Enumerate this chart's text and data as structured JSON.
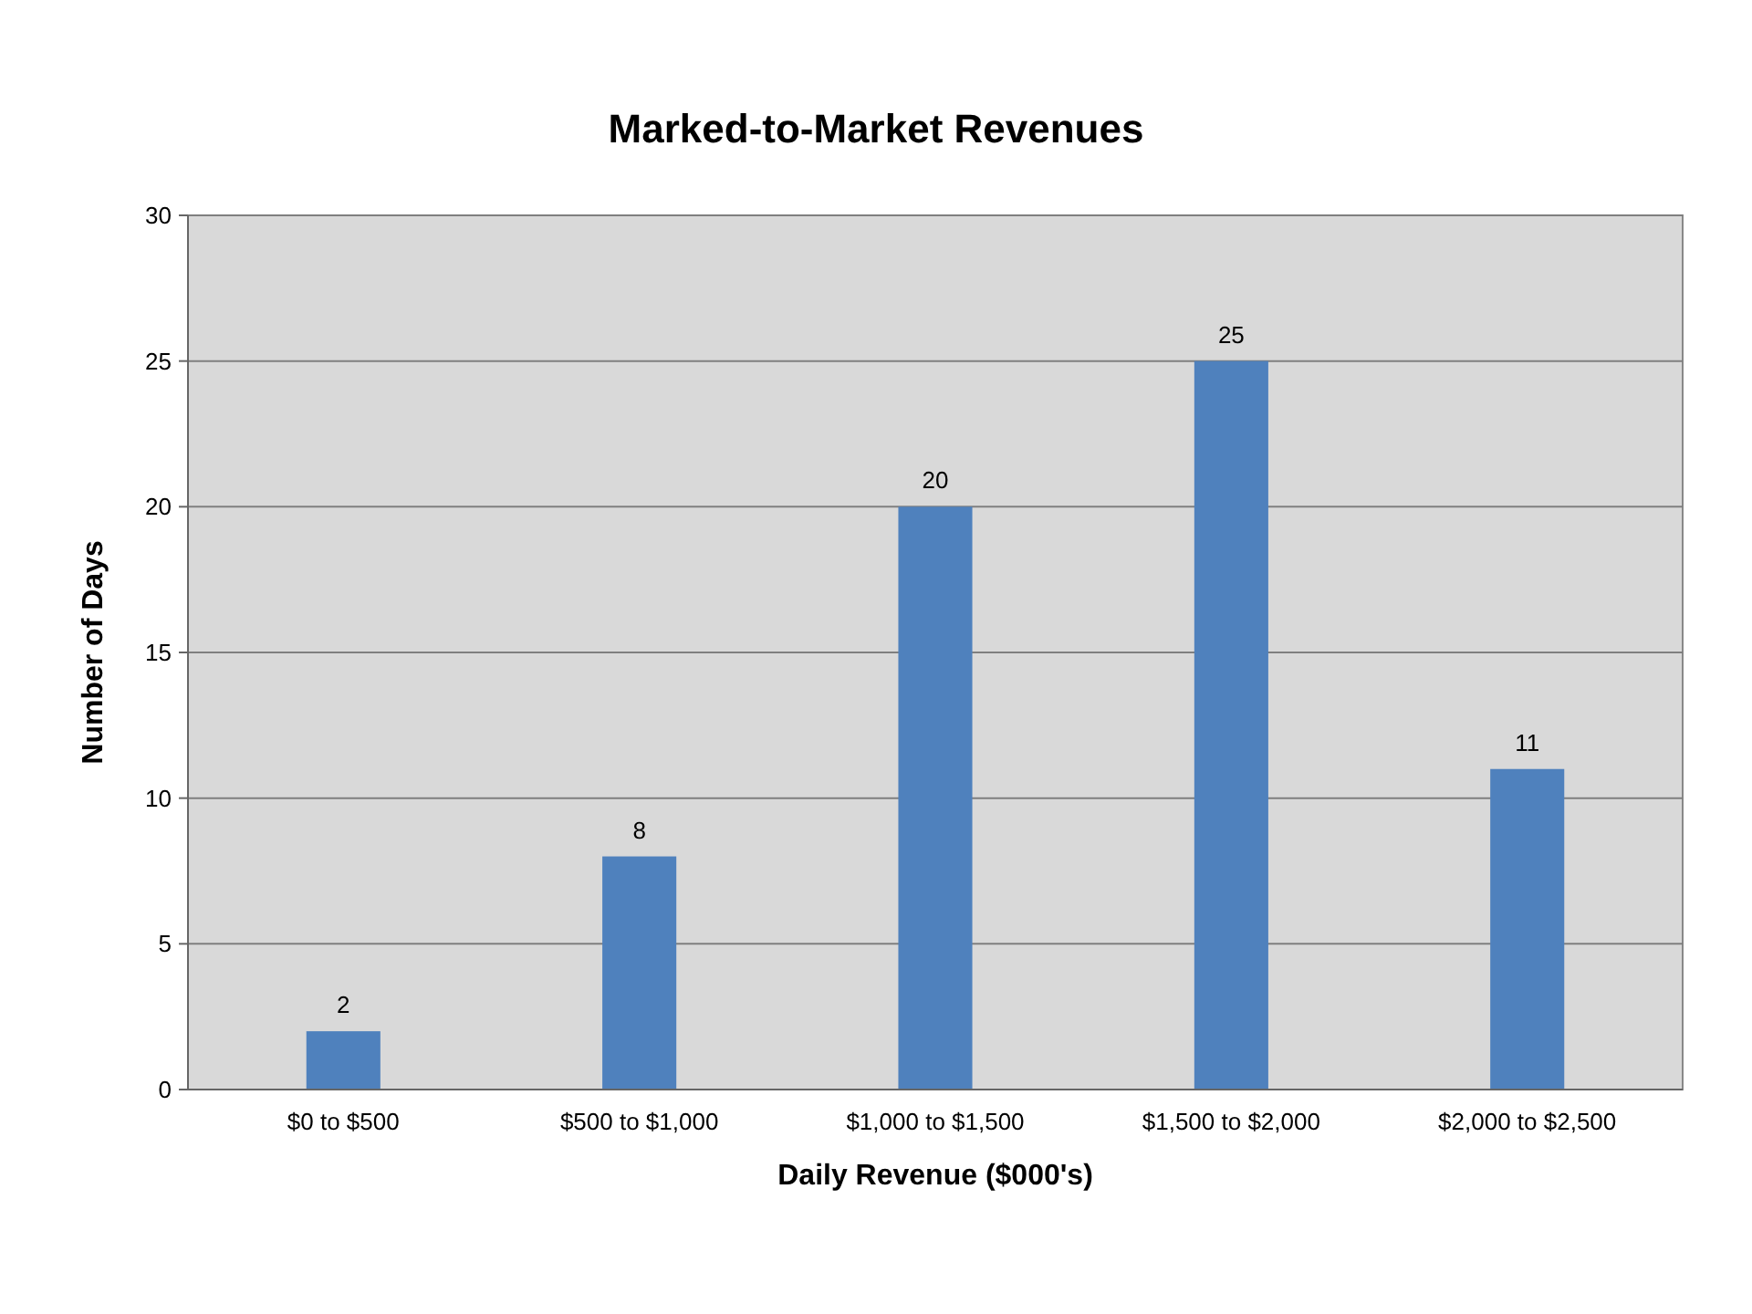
{
  "chart_data": {
    "type": "bar",
    "title": "Marked-to-Market Revenues",
    "xlabel": "Daily Revenue ($000's)",
    "ylabel": "Number of Days",
    "categories": [
      "$0 to $500",
      "$500 to $1,000",
      "$1,000 to $1,500",
      "$1,500 to $2,000",
      "$2,000 to $2,500"
    ],
    "values": [
      2,
      8,
      20,
      25,
      11
    ],
    "color": "#4f81bd",
    "ylim": [
      0,
      30
    ],
    "yticks": [
      0,
      5,
      10,
      15,
      20,
      25,
      30
    ],
    "grid": "y",
    "data_labels": true
  }
}
